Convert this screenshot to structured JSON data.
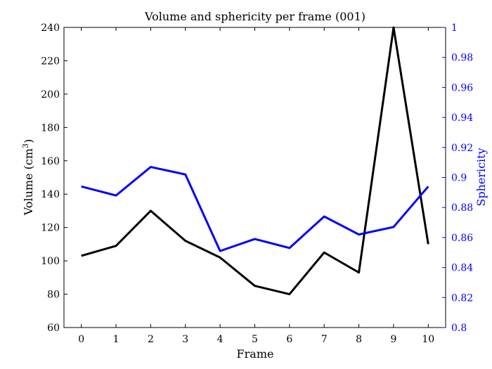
{
  "chart_data": {
    "type": "line",
    "title": "Volume and sphericity per frame (001)",
    "xlabel": "Frame",
    "ylabel_left": "Volume (cm",
    "ylabel_left_sup": "3",
    "ylabel_left_close": ")",
    "ylabel_right": "Sphericity",
    "x": [
      0,
      1,
      2,
      3,
      4,
      5,
      6,
      7,
      8,
      9,
      10
    ],
    "xlim": [
      -0.5,
      10.5
    ],
    "xticks": [
      "0",
      "1",
      "2",
      "3",
      "4",
      "5",
      "6",
      "7",
      "8",
      "9",
      "10"
    ],
    "ylim_left": [
      60,
      240
    ],
    "yticks_left": [
      "60",
      "80",
      "100",
      "120",
      "140",
      "160",
      "180",
      "200",
      "220",
      "240"
    ],
    "ylim_right": [
      0.8,
      1.0
    ],
    "yticks_right": [
      "0.8",
      "0.82",
      "0.84",
      "0.86",
      "0.88",
      "0.9",
      "0.92",
      "0.94",
      "0.96",
      "0.98",
      "1"
    ],
    "grid": false,
    "series": [
      {
        "axis": "left",
        "color": "#000000",
        "values": [
          103,
          109,
          130,
          112,
          102,
          85,
          80,
          105,
          93,
          240,
          110
        ]
      },
      {
        "axis": "right",
        "color": "#0000ff",
        "values": [
          0.894,
          0.888,
          0.907,
          0.902,
          0.851,
          0.859,
          0.853,
          0.874,
          0.862,
          0.867,
          0.894
        ]
      }
    ],
    "right_axis_color": "#0000ff"
  }
}
